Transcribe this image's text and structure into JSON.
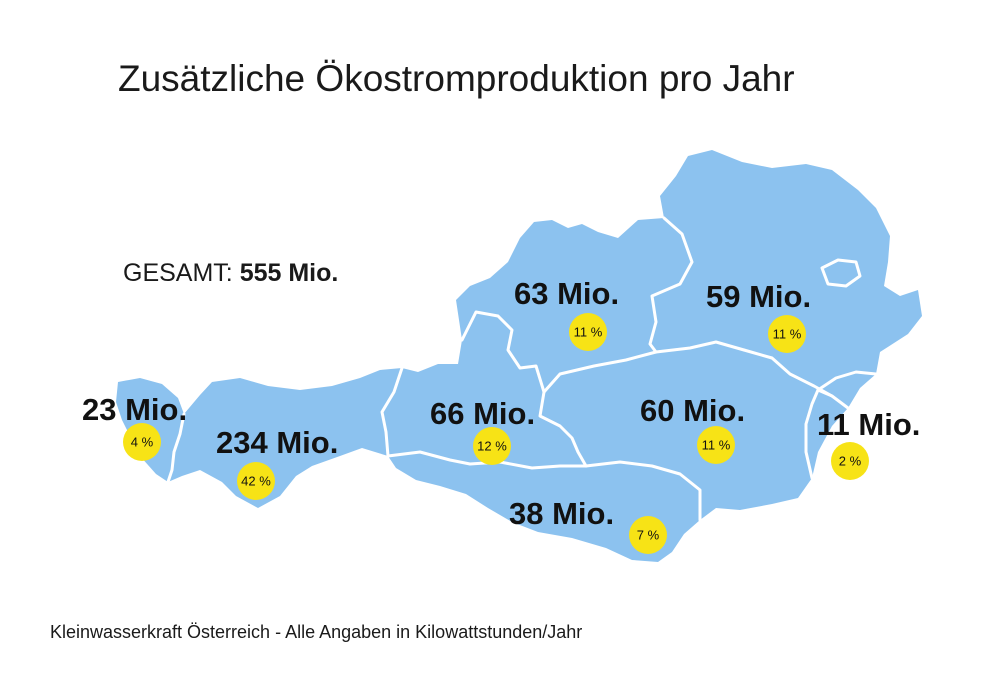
{
  "title": "Zusätzliche Ökostromproduktion pro Jahr",
  "total": {
    "label": "GESAMT:",
    "value": "555 Mio."
  },
  "footer": "Kleinwasserkraft Österreich - Alle Angaben in Kilowattstunden/Jahr",
  "colors": {
    "state_fill": "#8cc2ef",
    "border": "#ffffff",
    "badge": "#f7e316",
    "text": "#111111"
  },
  "regions": [
    {
      "id": "vorarlberg",
      "value": "23 Mio.",
      "share": "4 %"
    },
    {
      "id": "tirol",
      "value": "234 Mio.",
      "share": "42 %"
    },
    {
      "id": "salzburg",
      "value": "66 Mio.",
      "share": "12 %"
    },
    {
      "id": "oberoesterreich",
      "value": "63 Mio.",
      "share": "11 %"
    },
    {
      "id": "niederoesterreich",
      "value": "59 Mio.",
      "share": "11 %"
    },
    {
      "id": "steiermark",
      "value": "60 Mio.",
      "share": "11 %"
    },
    {
      "id": "kaernten",
      "value": "38 Mio.",
      "share": "7 %"
    },
    {
      "id": "burgenland",
      "value": "11 Mio.",
      "share": "2 %"
    }
  ]
}
